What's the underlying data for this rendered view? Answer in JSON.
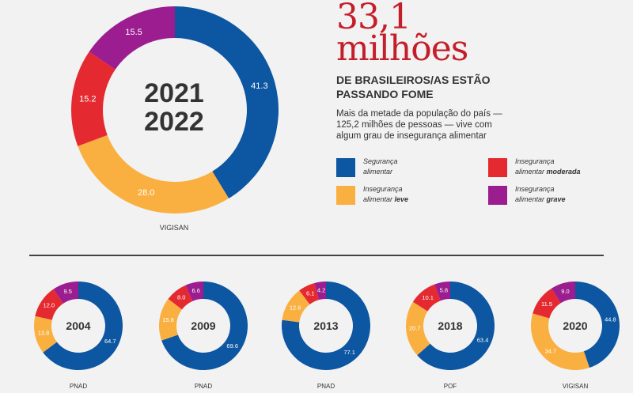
{
  "headline": {
    "number_line1": "33,1",
    "number_line2": "milhões",
    "subtitle": "DE BRASILEIROS/AS ESTÃO PASSANDO FOME",
    "description": "Mais da metade da população do país — 125,2 milhões de pessoas — vive com algum grau de insegurança alimentar"
  },
  "legend": [
    {
      "label_line1": "Segurança",
      "label_line2": "alimentar",
      "color": "#0d56a1"
    },
    {
      "label_line1": "Insegurança",
      "label_line2_pre": "alimentar ",
      "label_line2_bold": "moderada",
      "color": "#e42a30"
    },
    {
      "label_line1": "Insegurança",
      "label_line2_pre": "alimentar ",
      "label_line2_bold": "leve",
      "color": "#f9b040"
    },
    {
      "label_line1": "Insegurança",
      "label_line2_pre": "alimentar ",
      "label_line2_bold": "grave",
      "color": "#9b1d8f"
    }
  ],
  "colors": {
    "seguranca": "#0d56a1",
    "leve": "#f9b040",
    "moderada": "#e42a30",
    "grave": "#9b1d8f",
    "headline": "#c41e2a",
    "background": "#f2f2f2"
  },
  "chart_data": [
    {
      "type": "pie",
      "year_line1": "2021",
      "year_line2": "2022",
      "source": "VIGISAN",
      "categories": [
        "Segurança alimentar",
        "Insegurança alimentar leve",
        "Insegurança alimentar moderada",
        "Insegurança alimentar grave"
      ],
      "values": [
        41.3,
        28.0,
        15.2,
        15.5
      ],
      "labels": [
        "41.3",
        "28.0",
        "15.2",
        "15.5"
      ]
    },
    {
      "type": "pie",
      "year": "2004",
      "source": "PNAD",
      "categories": [
        "Segurança alimentar",
        "Insegurança alimentar leve",
        "Insegurança alimentar moderada",
        "Insegurança alimentar grave"
      ],
      "values": [
        64.7,
        13.8,
        12.0,
        9.5
      ],
      "labels": [
        "64.7",
        "13.8",
        "12.0",
        "9.5"
      ]
    },
    {
      "type": "pie",
      "year": "2009",
      "source": "PNAD",
      "categories": [
        "Segurança alimentar",
        "Insegurança alimentar leve",
        "Insegurança alimentar moderada",
        "Insegurança alimentar grave"
      ],
      "values": [
        69.6,
        15.8,
        8.0,
        6.6
      ],
      "labels": [
        "69.6",
        "15.8",
        "8.0",
        "6.6"
      ]
    },
    {
      "type": "pie",
      "year": "2013",
      "source": "PNAD",
      "categories": [
        "Segurança alimentar",
        "Insegurança alimentar leve",
        "Insegurança alimentar moderada",
        "Insegurança alimentar grave"
      ],
      "values": [
        77.1,
        12.6,
        6.1,
        4.2
      ],
      "labels": [
        "77.1",
        "12.6",
        "6.1",
        "4.2"
      ]
    },
    {
      "type": "pie",
      "year": "2018",
      "source": "POF",
      "categories": [
        "Segurança alimentar",
        "Insegurança alimentar leve",
        "Insegurança alimentar moderada",
        "Insegurança alimentar grave"
      ],
      "values": [
        63.4,
        20.7,
        10.1,
        5.8
      ],
      "labels": [
        "63.4",
        "20.7",
        "10.1",
        "5.8"
      ]
    },
    {
      "type": "pie",
      "year": "2020",
      "source": "VIGISAN",
      "categories": [
        "Segurança alimentar",
        "Insegurança alimentar leve",
        "Insegurança alimentar moderada",
        "Insegurança alimentar grave"
      ],
      "values": [
        44.8,
        34.7,
        11.5,
        9.0
      ],
      "labels": [
        "44.8",
        "34.7",
        "11.5",
        "9.0"
      ]
    }
  ]
}
